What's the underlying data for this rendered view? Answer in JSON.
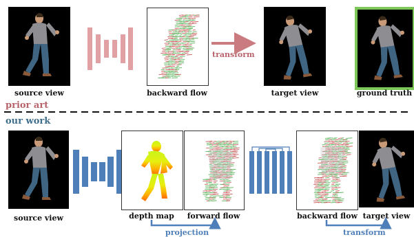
{
  "prior_art": {
    "section_label": "prior art",
    "source_caption": "source view",
    "flow_caption": "backward flow",
    "arrow_label": "transform",
    "target_caption": "target view",
    "gt_caption": "ground truth"
  },
  "our_work": {
    "section_label": "our work",
    "source_caption": "source view",
    "depth_caption": "depth map",
    "forward_caption": "forward flow",
    "backward_caption": "backward flow",
    "target_caption": "target view",
    "projection_label": "projection",
    "transform_label": "transform"
  },
  "colors": {
    "prior_accent": "#b8636b",
    "prior_network": "#e0a0a4",
    "our_accent": "#3f6e8c",
    "our_network": "#4f7fb8",
    "ground_truth_border": "#7ec85a",
    "flow_red": "#c0393b",
    "flow_green": "#3aa33a"
  },
  "icons": {
    "person": "running-person",
    "encoder": "encoder-network",
    "decoder": "encoder-decoder-network"
  }
}
